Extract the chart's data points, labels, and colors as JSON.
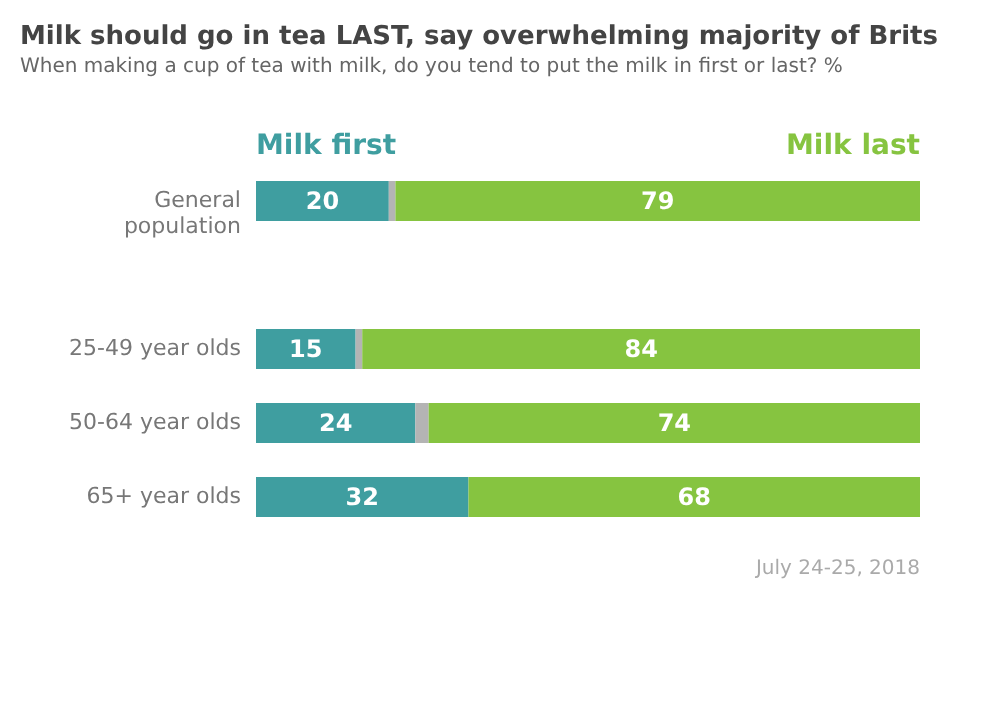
{
  "chart_data": {
    "type": "bar",
    "orientation": "horizontal",
    "stacked": true,
    "title": "Milk should go in tea LAST, say overwhelming majority of Brits",
    "subtitle": "When making a cup of tea with milk, do you tend to put the milk in first or last? %",
    "categories": [
      "General population",
      null,
      "25-49 year olds",
      "50-64 year olds",
      "65+ year olds"
    ],
    "series": [
      {
        "name": "Milk first",
        "color": "#3f9ea0",
        "values": [
          20,
          null,
          15,
          24,
          32
        ],
        "value_labels": [
          "20",
          null,
          "15",
          "24",
          "32"
        ]
      },
      {
        "color": "#b4b4b4",
        "values": [
          1,
          null,
          1,
          2,
          0
        ]
      },
      {
        "name": "Milk last",
        "color": "#86c440",
        "values": [
          79,
          null,
          84,
          74,
          68
        ],
        "value_labels": [
          "79",
          null,
          "84",
          "74",
          "68"
        ]
      }
    ],
    "annotations": [
      "July 24-25, 2018"
    ]
  }
}
